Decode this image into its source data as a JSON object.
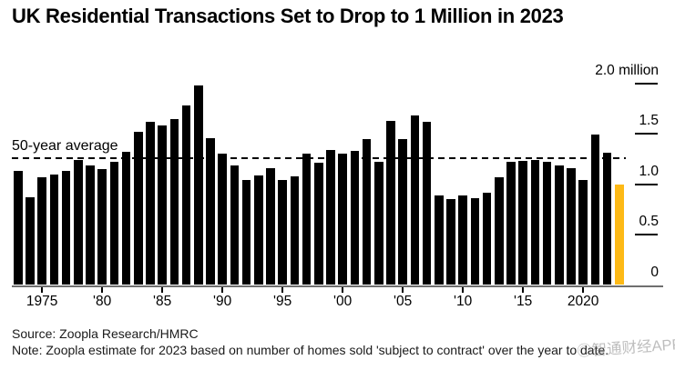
{
  "title": "UK Residential Transactions Set to Drop to 1 Million in 2023",
  "watermark": "◎智通财经APP",
  "footer": {
    "source": "Source: Zoopla Research/HMRC",
    "note": "Note: Zoopla estimate for 2023 based on number of homes sold 'subject to contract' over the year to date."
  },
  "colors": {
    "bar": "#000000",
    "highlight": "#fdb916",
    "axis_line": "#6f6f6f",
    "text": "#000000",
    "footer_text": "#1a1a1a"
  },
  "chart_data": {
    "type": "bar",
    "title": "UK Residential Transactions Set to Drop to 1 Million in 2023",
    "unit": "million",
    "ylim": [
      0,
      2.0
    ],
    "grid": false,
    "legend": "none",
    "y_axis": {
      "side": "right",
      "ticks": [
        {
          "value": 2.0,
          "label": "2.0 million"
        },
        {
          "value": 1.5,
          "label": "1.5"
        },
        {
          "value": 1.0,
          "label": "1.0"
        },
        {
          "value": 0.5,
          "label": "0.5"
        },
        {
          "value": 0.0,
          "label": "0"
        }
      ]
    },
    "x_axis": {
      "ticks": [
        {
          "year": 1975,
          "label": "1975"
        },
        {
          "year": 1980,
          "label": "'80"
        },
        {
          "year": 1985,
          "label": "'85"
        },
        {
          "year": 1990,
          "label": "'90"
        },
        {
          "year": 1995,
          "label": "'95"
        },
        {
          "year": 2000,
          "label": "'00"
        },
        {
          "year": 2005,
          "label": "'05"
        },
        {
          "year": 2010,
          "label": "'10"
        },
        {
          "year": 2015,
          "label": "'15"
        },
        {
          "year": 2020,
          "label": "2020"
        }
      ]
    },
    "average_line": {
      "label": "50-year average",
      "value": 1.26,
      "style": "dashed"
    },
    "highlight": {
      "year": 2023,
      "color": "#fdb916",
      "note": "Zoopla estimate"
    },
    "years": [
      1973,
      1974,
      1975,
      1976,
      1977,
      1978,
      1979,
      1980,
      1981,
      1982,
      1983,
      1984,
      1985,
      1986,
      1987,
      1988,
      1989,
      1990,
      1991,
      1992,
      1993,
      1994,
      1995,
      1996,
      1997,
      1998,
      1999,
      2000,
      2001,
      2002,
      2003,
      2004,
      2005,
      2006,
      2007,
      2008,
      2009,
      2010,
      2011,
      2012,
      2013,
      2014,
      2015,
      2016,
      2017,
      2018,
      2019,
      2020,
      2021,
      2022,
      2023
    ],
    "values": [
      1.13,
      0.87,
      1.07,
      1.1,
      1.13,
      1.24,
      1.19,
      1.15,
      1.22,
      1.32,
      1.52,
      1.62,
      1.58,
      1.65,
      1.78,
      1.98,
      1.46,
      1.3,
      1.19,
      1.04,
      1.09,
      1.16,
      1.04,
      1.08,
      1.3,
      1.21,
      1.34,
      1.3,
      1.33,
      1.45,
      1.22,
      1.63,
      1.45,
      1.68,
      1.62,
      0.89,
      0.85,
      0.89,
      0.86,
      0.92,
      1.07,
      1.22,
      1.23,
      1.24,
      1.22,
      1.19,
      1.16,
      1.04,
      1.49,
      1.31,
      1.0
    ]
  }
}
